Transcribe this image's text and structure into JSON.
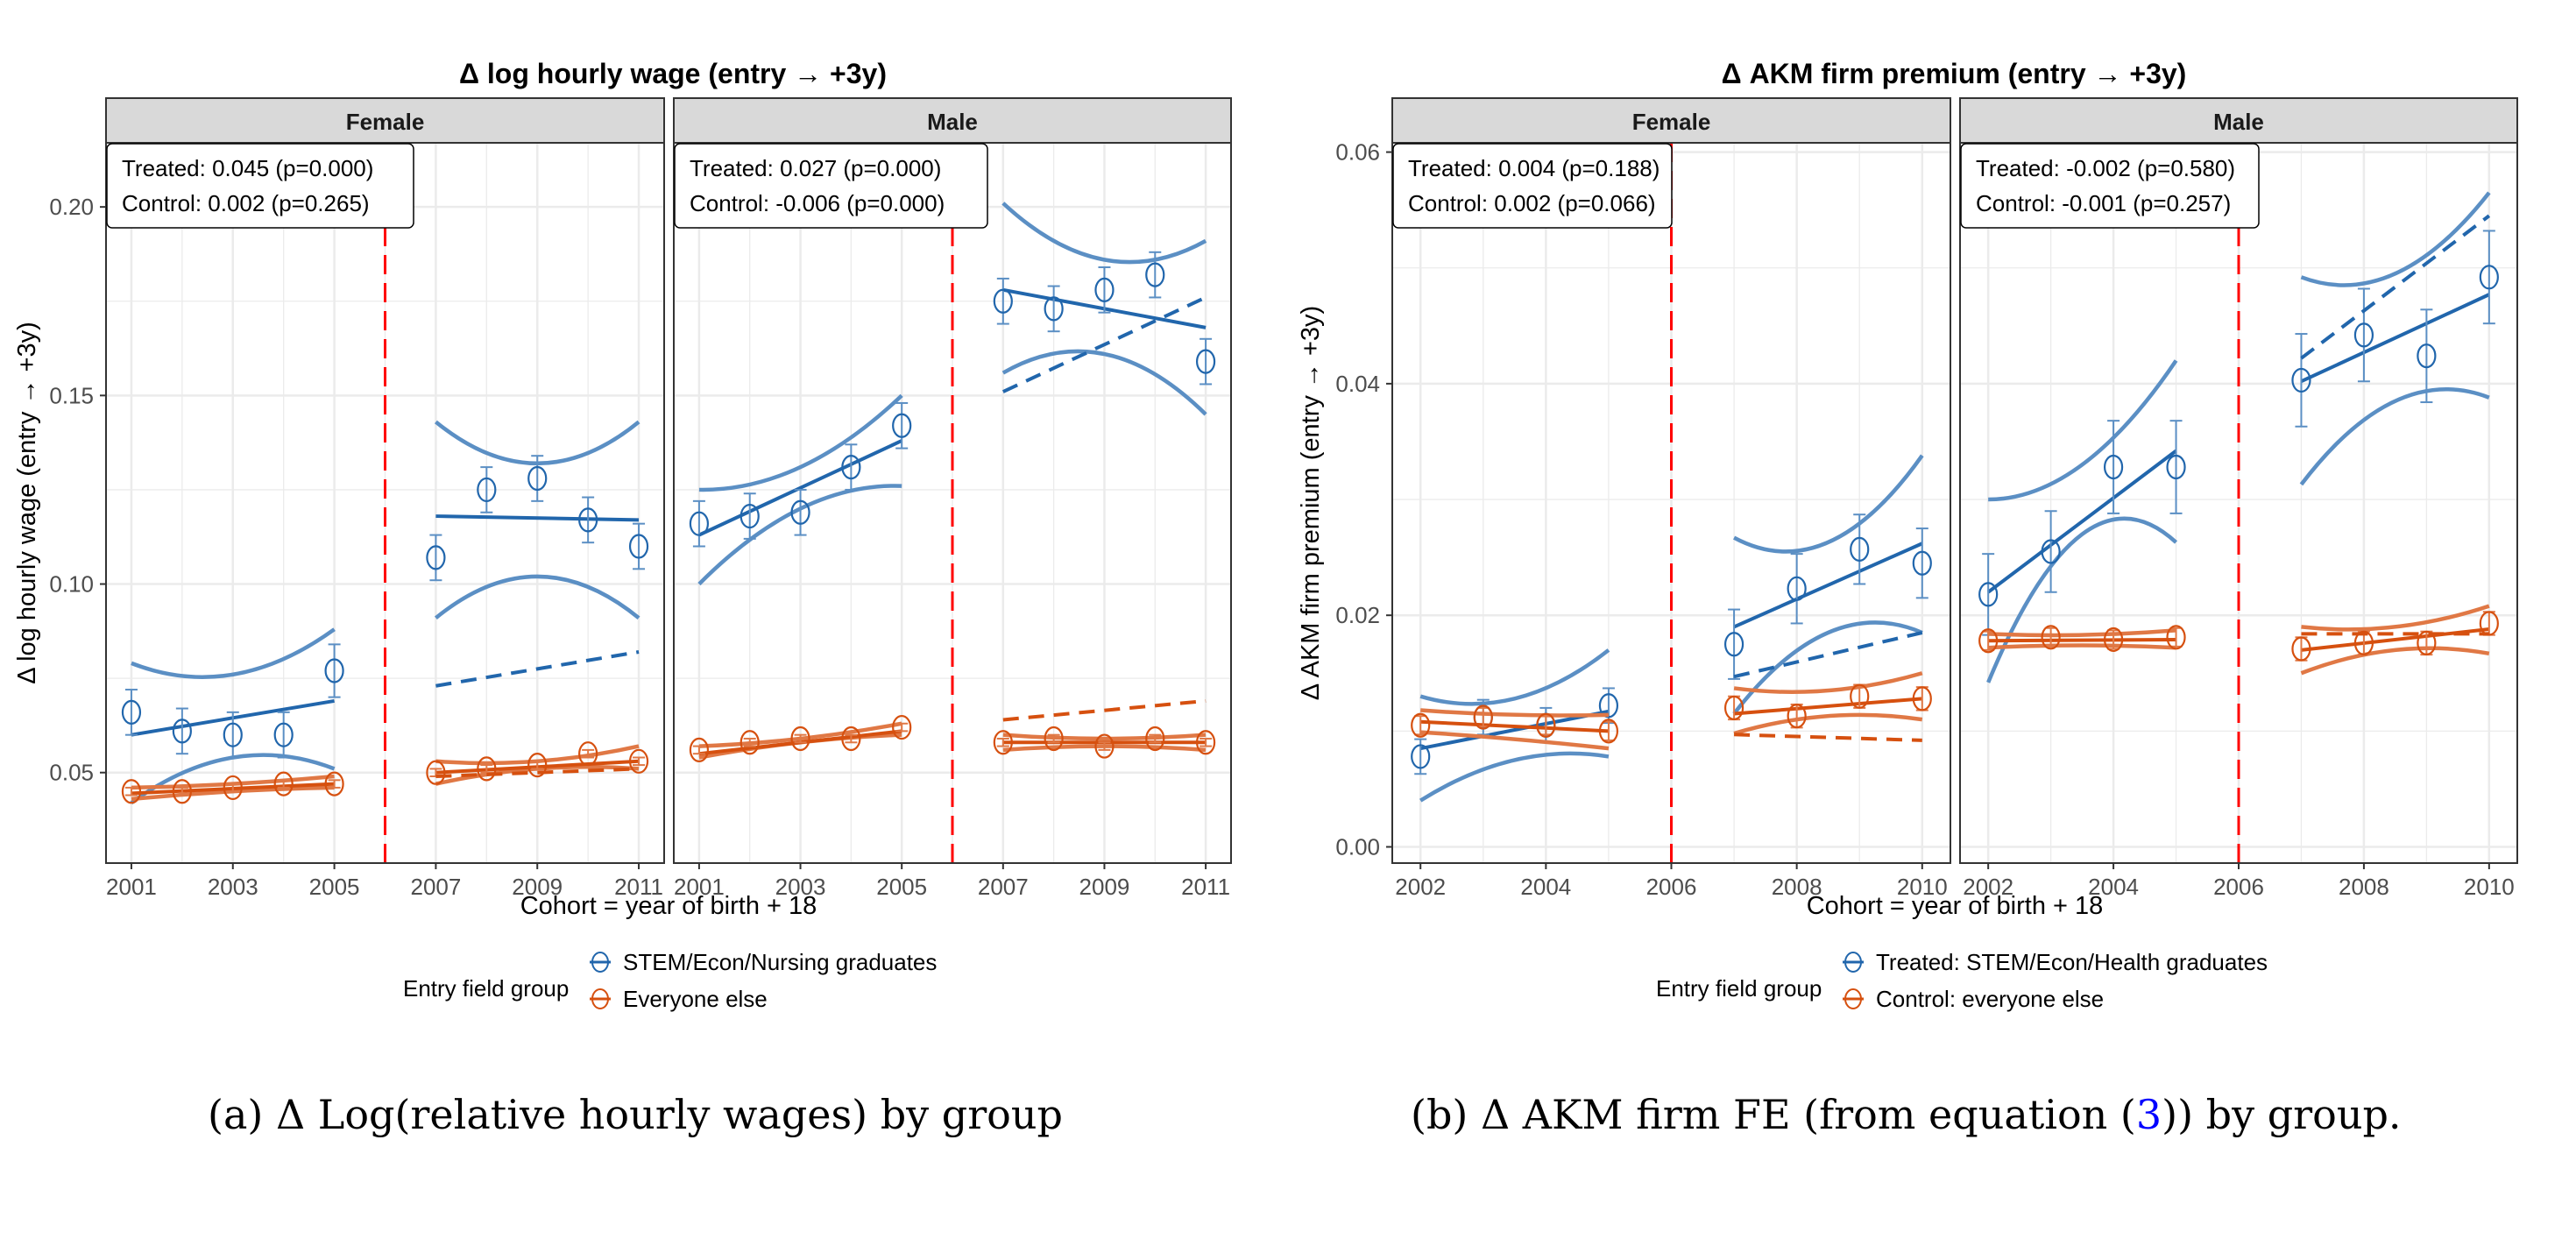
{
  "captions": {
    "a": "(a) Δ Log(relative hourly wages) by group",
    "b_prefix": "(b) Δ AKM firm FE (from equation (",
    "b_ref": "3",
    "b_suffix": ")) by group."
  },
  "chart_data": [
    {
      "type": "line",
      "title": "Δ log hourly wage (entry → +3y)",
      "xlabel": "Cohort = year of birth + 18",
      "ylabel": "Δ log hourly wage (entry → +3y)",
      "ylim": [
        0.026,
        0.217
      ],
      "xlim": [
        2000.5,
        2011.5
      ],
      "yticks": [
        0.05,
        0.1,
        0.15,
        0.2
      ],
      "ytick_labels": [
        "0.05",
        "0.10",
        "0.15",
        "0.20"
      ],
      "xticks": [
        2001,
        2003,
        2005,
        2007,
        2009,
        2011
      ],
      "xtick_labels": [
        "2001",
        "2003",
        "2005",
        "2007",
        "2009",
        "2011"
      ],
      "reform_year": 2006,
      "grid": true,
      "legend": {
        "title": "Entry field group",
        "placement": "bottom",
        "entries": [
          "STEM/Econ/Nursing graduates",
          "Everyone else"
        ]
      },
      "colors": {
        "treated": "#2166ac",
        "treated_light": "#5b8fc4",
        "control": "#d6500f",
        "control_light": "#e07845",
        "reform": "#ff0000"
      },
      "panels": [
        {
          "name": "Female",
          "annotation": [
            "Treated: 0.045 (p=0.000)",
            "Control: 0.002 (p=0.265)"
          ],
          "series": [
            {
              "name": "STEM/Econ/Nursing graduates",
              "pre_x": [
                2001,
                2002,
                2003,
                2004,
                2005
              ],
              "pre_y": [
                0.066,
                0.061,
                0.06,
                0.06,
                0.077
              ],
              "pre_se": [
                0.006,
                0.006,
                0.006,
                0.006,
                0.007
              ],
              "pre_fit": [
                0.06,
                0.069
              ],
              "pre_ci_upper": [
                0.079,
                0.076,
                0.088
              ],
              "pre_ci_lower": [
                0.042,
                0.054,
                0.051
              ],
              "post_x": [
                2007,
                2008,
                2009,
                2010,
                2011
              ],
              "post_y": [
                0.107,
                0.125,
                0.128,
                0.117,
                0.11
              ],
              "post_se": [
                0.006,
                0.006,
                0.006,
                0.006,
                0.006
              ],
              "post_fit": [
                0.118,
                0.117
              ],
              "post_ci_upper": [
                0.143,
                0.132,
                0.143
              ],
              "post_ci_lower": [
                0.091,
                0.102,
                0.091
              ],
              "counterfactual": [
                0.073,
                0.082
              ]
            },
            {
              "name": "Everyone else",
              "pre_x": [
                2001,
                2002,
                2003,
                2004,
                2005
              ],
              "pre_y": [
                0.045,
                0.045,
                0.046,
                0.047,
                0.047
              ],
              "pre_se": [
                0.001,
                0.001,
                0.001,
                0.001,
                0.001
              ],
              "pre_fit": [
                0.0445,
                0.047
              ],
              "pre_ci_upper": [
                0.046,
                0.047,
                0.049
              ],
              "pre_ci_lower": [
                0.043,
                0.045,
                0.046
              ],
              "post_x": [
                2007,
                2008,
                2009,
                2010,
                2011
              ],
              "post_y": [
                0.05,
                0.051,
                0.052,
                0.055,
                0.053
              ],
              "post_se": [
                0.001,
                0.001,
                0.001,
                0.001,
                0.001
              ],
              "post_fit": [
                0.05,
                0.053
              ],
              "post_ci_upper": [
                0.053,
                0.053,
                0.057
              ],
              "post_ci_lower": [
                0.047,
                0.051,
                0.051
              ],
              "counterfactual": [
                0.049,
                0.051
              ]
            }
          ]
        },
        {
          "name": "Male",
          "annotation": [
            "Treated: 0.027 (p=0.000)",
            "Control: -0.006 (p=0.000)"
          ],
          "series": [
            {
              "name": "STEM/Econ/Nursing graduates",
              "pre_x": [
                2001,
                2002,
                2003,
                2004,
                2005
              ],
              "pre_y": [
                0.116,
                0.118,
                0.119,
                0.131,
                0.142
              ],
              "pre_se": [
                0.006,
                0.006,
                0.006,
                0.006,
                0.006
              ],
              "pre_fit": [
                0.113,
                0.138
              ],
              "pre_ci_upper": [
                0.125,
                0.131,
                0.15
              ],
              "pre_ci_lower": [
                0.1,
                0.12,
                0.126
              ],
              "post_x": [
                2007,
                2008,
                2009,
                2010,
                2011
              ],
              "post_y": [
                0.175,
                0.173,
                0.178,
                0.182,
                0.159
              ],
              "post_se": [
                0.006,
                0.006,
                0.006,
                0.006,
                0.006
              ],
              "post_fit": [
                0.178,
                0.168
              ],
              "post_ci_upper": [
                0.201,
                0.186,
                0.191
              ],
              "post_ci_lower": [
                0.156,
                0.161,
                0.145
              ],
              "counterfactual": [
                0.151,
                0.176
              ]
            },
            {
              "name": "Everyone else",
              "pre_x": [
                2001,
                2002,
                2003,
                2004,
                2005
              ],
              "pre_y": [
                0.056,
                0.058,
                0.059,
                0.059,
                0.062
              ],
              "pre_se": [
                0.001,
                0.001,
                0.001,
                0.001,
                0.001
              ],
              "pre_fit": [
                0.055,
                0.061
              ],
              "pre_ci_upper": [
                0.057,
                0.059,
                0.063
              ],
              "pre_ci_lower": [
                0.054,
                0.058,
                0.06
              ],
              "post_x": [
                2007,
                2008,
                2009,
                2010,
                2011
              ],
              "post_y": [
                0.058,
                0.059,
                0.057,
                0.059,
                0.058
              ],
              "post_se": [
                0.001,
                0.001,
                0.001,
                0.001,
                0.001
              ],
              "post_fit": [
                0.058,
                0.058
              ],
              "post_ci_upper": [
                0.06,
                0.059,
                0.06
              ],
              "post_ci_lower": [
                0.056,
                0.057,
                0.056
              ],
              "counterfactual": [
                0.064,
                0.069
              ]
            }
          ]
        }
      ]
    },
    {
      "type": "line",
      "title": "Δ AKM firm premium (entry → +3y)",
      "xlabel": "Cohort = year of birth + 18",
      "ylabel": "Δ AKM firm premium (entry → +3y)",
      "ylim": [
        -0.0014,
        0.0608
      ],
      "xlim": [
        2001.55,
        2010.45
      ],
      "yticks": [
        0.0,
        0.02,
        0.04,
        0.06
      ],
      "ytick_labels": [
        "0.00",
        "0.02",
        "0.04",
        "0.06"
      ],
      "xticks": [
        2002,
        2004,
        2006,
        2008,
        2010
      ],
      "xtick_labels": [
        "2002",
        "2004",
        "2006",
        "2008",
        "2010"
      ],
      "reform_year": 2006,
      "grid": true,
      "legend": {
        "title": "Entry field group",
        "placement": "bottom",
        "entries": [
          "Treated: STEM/Econ/Health graduates",
          "Control: everyone else"
        ]
      },
      "colors": {
        "treated": "#2166ac",
        "treated_light": "#5b8fc4",
        "control": "#d6500f",
        "control_light": "#e07845",
        "reform": "#ff0000"
      },
      "panels": [
        {
          "name": "Female",
          "annotation": [
            "Treated: 0.004 (p=0.188)",
            "Control: 0.002 (p=0.066)"
          ],
          "series": [
            {
              "name": "Treated: STEM/Econ/Health graduates",
              "pre_x": [
                2002,
                2003,
                2004,
                2005
              ],
              "pre_y": [
                0.0078,
                0.0112,
                0.0105,
                0.0122
              ],
              "pre_se": [
                0.0015,
                0.0015,
                0.0015,
                0.0015
              ],
              "pre_fit": [
                0.0085,
                0.0117
              ],
              "pre_ci_upper": [
                0.013,
                0.0128,
                0.017
              ],
              "pre_ci_lower": [
                0.004,
                0.0075,
                0.0078
              ],
              "post_x": [
                2007,
                2008,
                2009,
                2010
              ],
              "post_y": [
                0.0175,
                0.0223,
                0.0257,
                0.0245
              ],
              "post_se": [
                0.003,
                0.003,
                0.003,
                0.003
              ],
              "post_fit": [
                0.019,
                0.0262
              ],
              "post_ci_upper": [
                0.0267,
                0.0263,
                0.0338
              ],
              "post_ci_lower": [
                0.0115,
                0.0185,
                0.0185
              ],
              "counterfactual": [
                0.0147,
                0.0185
              ]
            },
            {
              "name": "Control: everyone else",
              "pre_x": [
                2002,
                2003,
                2004,
                2005
              ],
              "pre_y": [
                0.0105,
                0.0112,
                0.0105,
                0.01
              ],
              "pre_se": [
                0.0008,
                0.0008,
                0.0008,
                0.0008
              ],
              "pre_fit": [
                0.0108,
                0.01
              ],
              "pre_ci_upper": [
                0.0118,
                0.0114,
                0.0114
              ],
              "pre_ci_lower": [
                0.0099,
                0.0093,
                0.0085
              ],
              "post_x": [
                2007,
                2008,
                2009,
                2010
              ],
              "post_y": [
                0.012,
                0.0113,
                0.013,
                0.0128
              ],
              "post_se": [
                0.001,
                0.001,
                0.001,
                0.001
              ],
              "post_fit": [
                0.0115,
                0.0128
              ],
              "post_ci_upper": [
                0.0137,
                0.0135,
                0.015
              ],
              "post_ci_lower": [
                0.0098,
                0.0113,
                0.011
              ],
              "counterfactual": [
                0.0097,
                0.0092
              ]
            }
          ]
        },
        {
          "name": "Male",
          "annotation": [
            "Treated: -0.002 (p=0.580)",
            "Control: -0.001 (p=0.257)"
          ],
          "series": [
            {
              "name": "Treated: STEM/Econ/Health graduates",
              "pre_x": [
                2002,
                2003,
                2004,
                2005
              ],
              "pre_y": [
                0.0218,
                0.0255,
                0.0328,
                0.0328
              ],
              "pre_se": [
                0.0035,
                0.0035,
                0.004,
                0.004
              ],
              "pre_fit": [
                0.022,
                0.0342
              ],
              "pre_ci_upper": [
                0.03,
                0.033,
                0.042
              ],
              "pre_ci_lower": [
                0.0142,
                0.027,
                0.0263
              ],
              "post_x": [
                2007,
                2008,
                2009,
                2010
              ],
              "post_y": [
                0.0403,
                0.0442,
                0.0424,
                0.0492
              ],
              "post_se": [
                0.004,
                0.004,
                0.004,
                0.004
              ],
              "post_fit": [
                0.0402,
                0.0477
              ],
              "post_ci_upper": [
                0.0492,
                0.0495,
                0.0565
              ],
              "post_ci_lower": [
                0.0313,
                0.0385,
                0.0388
              ],
              "counterfactual": [
                0.0422,
                0.0545
              ]
            },
            {
              "name": "Control: everyone else",
              "pre_x": [
                2002,
                2003,
                2004,
                2005
              ],
              "pre_y": [
                0.0178,
                0.0181,
                0.0179,
                0.0181
              ],
              "pre_se": [
                0.0008,
                0.0008,
                0.0008,
                0.0008
              ],
              "pre_fit": [
                0.0178,
                0.0179
              ],
              "pre_ci_upper": [
                0.0184,
                0.0183,
                0.0187
              ],
              "pre_ci_lower": [
                0.0172,
                0.0174,
                0.0172
              ],
              "post_x": [
                2007,
                2008,
                2009,
                2010
              ],
              "post_y": [
                0.0171,
                0.0176,
                0.0176,
                0.0193
              ],
              "post_se": [
                0.001,
                0.001,
                0.001,
                0.001
              ],
              "post_fit": [
                0.017,
                0.0188
              ],
              "post_ci_upper": [
                0.019,
                0.019,
                0.0208
              ],
              "post_ci_lower": [
                0.015,
                0.017,
                0.0167
              ],
              "counterfactual": [
                0.0184,
                0.0184
              ]
            }
          ]
        }
      ]
    }
  ]
}
